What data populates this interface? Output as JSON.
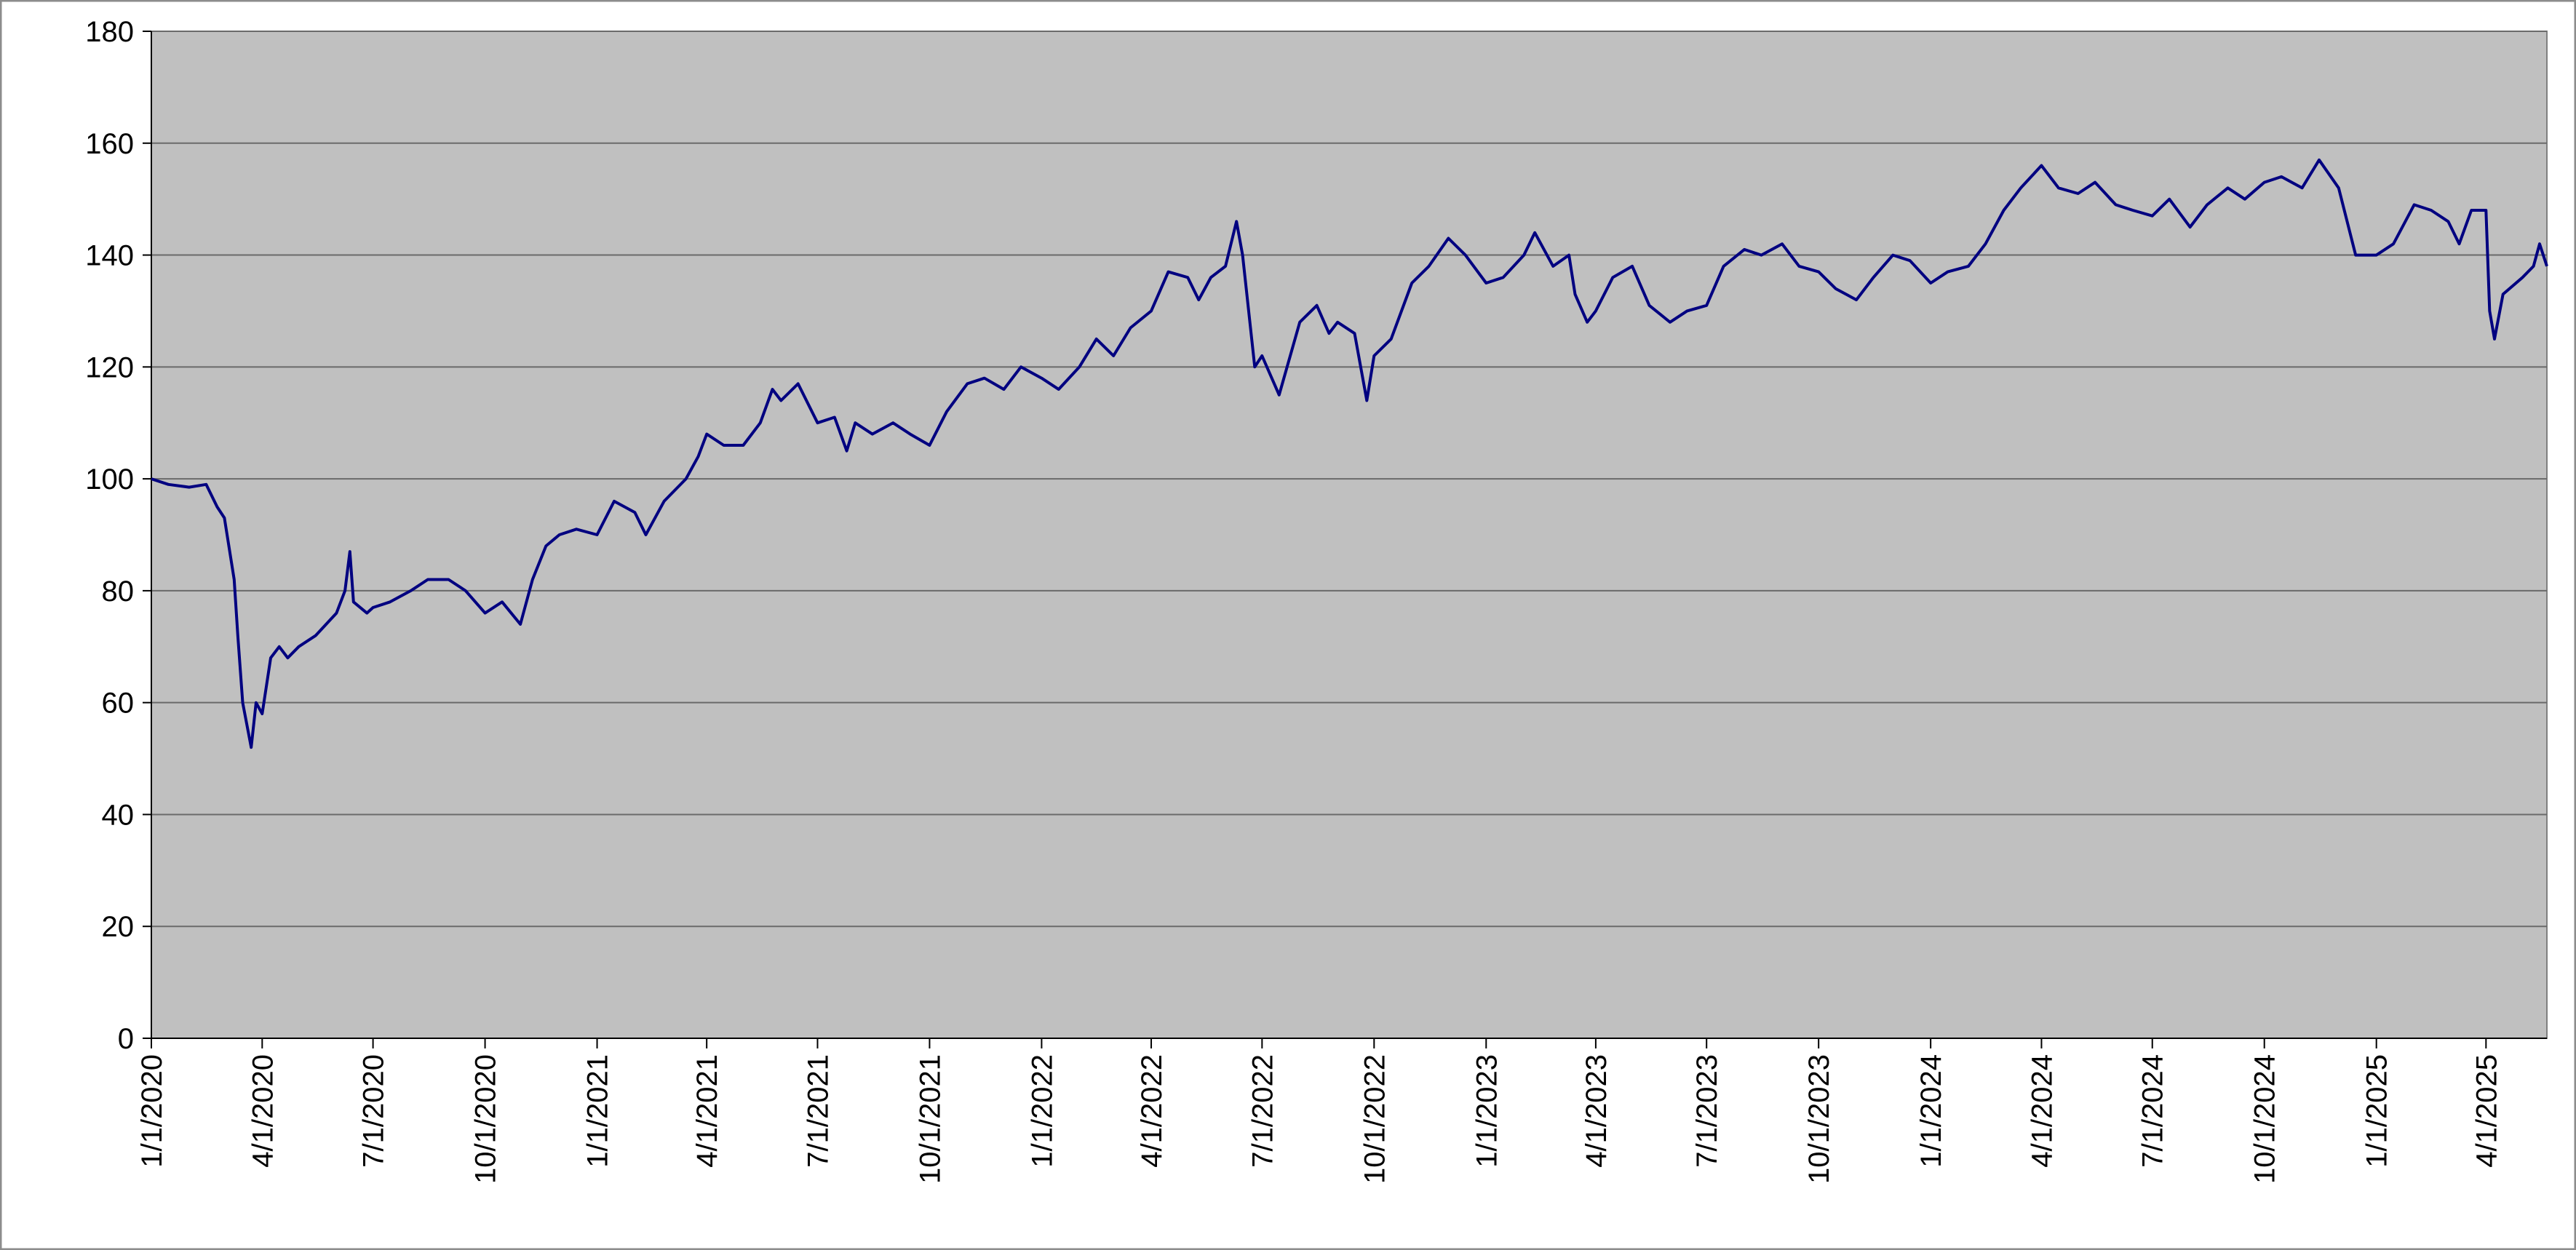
{
  "chart_data": {
    "type": "line",
    "x": [
      "1/1/2020",
      "1/15/2020",
      "2/1/2020",
      "2/15/2020",
      "2/24/2020",
      "3/1/2020",
      "3/9/2020",
      "3/12/2020",
      "3/16/2020",
      "3/23/2020",
      "3/27/2020",
      "4/1/2020",
      "4/8/2020",
      "4/15/2020",
      "4/22/2020",
      "5/1/2020",
      "5/15/2020",
      "6/1/2020",
      "6/8/2020",
      "6/12/2020",
      "6/15/2020",
      "6/26/2020",
      "7/1/2020",
      "7/15/2020",
      "8/1/2020",
      "8/15/2020",
      "9/1/2020",
      "9/15/2020",
      "10/1/2020",
      "10/15/2020",
      "10/30/2020",
      "11/9/2020",
      "11/20/2020",
      "12/1/2020",
      "12/15/2020",
      "1/1/2021",
      "1/15/2021",
      "2/1/2021",
      "2/10/2021",
      "2/25/2021",
      "3/15/2021",
      "3/25/2021",
      "4/1/2021",
      "4/15/2021",
      "5/1/2021",
      "5/15/2021",
      "5/25/2021",
      "6/1/2021",
      "6/15/2021",
      "7/1/2021",
      "7/15/2021",
      "7/25/2021",
      "8/1/2021",
      "8/15/2021",
      "9/1/2021",
      "9/15/2021",
      "10/1/2021",
      "10/15/2021",
      "11/1/2021",
      "11/15/2021",
      "12/1/2021",
      "12/15/2021",
      "1/1/2022",
      "1/15/2022",
      "2/1/2022",
      "2/15/2022",
      "3/1/2022",
      "3/15/2022",
      "4/1/2022",
      "4/15/2022",
      "5/1/2022",
      "5/10/2022",
      "5/20/2022",
      "6/1/2022",
      "6/10/2022",
      "6/15/2022",
      "6/25/2022",
      "7/1/2022",
      "7/15/2022",
      "8/1/2022",
      "8/15/2022",
      "8/25/2022",
      "9/1/2022",
      "9/15/2022",
      "9/25/2022",
      "10/1/2022",
      "10/15/2022",
      "11/1/2022",
      "11/15/2022",
      "12/1/2022",
      "12/15/2022",
      "1/1/2023",
      "1/15/2023",
      "2/1/2023",
      "2/10/2023",
      "2/25/2023",
      "3/10/2023",
      "3/15/2023",
      "3/25/2023",
      "4/1/2023",
      "4/15/2023",
      "5/1/2023",
      "5/15/2023",
      "6/1/2023",
      "6/15/2023",
      "7/1/2023",
      "7/15/2023",
      "8/1/2023",
      "8/15/2023",
      "9/1/2023",
      "9/15/2023",
      "10/1/2023",
      "10/15/2023",
      "11/1/2023",
      "11/15/2023",
      "12/1/2023",
      "12/15/2023",
      "1/1/2024",
      "1/15/2024",
      "2/1/2024",
      "2/15/2024",
      "3/1/2024",
      "3/15/2024",
      "4/1/2024",
      "4/15/2024",
      "5/1/2024",
      "5/15/2024",
      "6/1/2024",
      "6/15/2024",
      "7/1/2024",
      "7/15/2024",
      "8/1/2024",
      "8/15/2024",
      "9/1/2024",
      "9/15/2024",
      "10/1/2024",
      "10/15/2024",
      "11/1/2024",
      "11/15/2024",
      "12/1/2024",
      "12/15/2024",
      "1/1/2025",
      "1/15/2025",
      "2/1/2025",
      "2/15/2025",
      "3/1/2025",
      "3/10/2025",
      "3/20/2025",
      "4/1/2025",
      "4/4/2025",
      "4/8/2025",
      "4/15/2025",
      "5/1/2025",
      "5/10/2025",
      "5/15/2025",
      "5/21/2025"
    ],
    "values": [
      100,
      99,
      98.5,
      99,
      95,
      93,
      82,
      72,
      60,
      52,
      60,
      58,
      68,
      70,
      68,
      70,
      72,
      76,
      80,
      87,
      78,
      76,
      77,
      78,
      80,
      82,
      82,
      80,
      76,
      78,
      74,
      82,
      88,
      90,
      91,
      90,
      96,
      94,
      90,
      96,
      100,
      104,
      108,
      106,
      106,
      110,
      116,
      114,
      117,
      110,
      111,
      105,
      110,
      108,
      110,
      108,
      106,
      112,
      117,
      118,
      116,
      120,
      118,
      116,
      120,
      125,
      122,
      127,
      130,
      137,
      136,
      132,
      136,
      138,
      146,
      140,
      120,
      122,
      115,
      128,
      131,
      126,
      128,
      126,
      114,
      122,
      125,
      135,
      138,
      143,
      140,
      135,
      136,
      140,
      144,
      138,
      140,
      133,
      128,
      130,
      136,
      138,
      131,
      128,
      130,
      131,
      138,
      141,
      140,
      142,
      138,
      137,
      134,
      132,
      136,
      140,
      139,
      135,
      137,
      138,
      142,
      148,
      152,
      156,
      152,
      151,
      153,
      149,
      148,
      147,
      150,
      145,
      149,
      152,
      150,
      153,
      154,
      152,
      157,
      152,
      140,
      140,
      142,
      149,
      148,
      146,
      142,
      148,
      148,
      130,
      125,
      133,
      136,
      138,
      142,
      138
    ],
    "color": "#000080",
    "xlim": [
      "1/1/2020",
      "5/21/2025"
    ],
    "xticks": [
      "1/1/2020",
      "4/1/2020",
      "7/1/2020",
      "10/1/2020",
      "1/1/2021",
      "4/1/2021",
      "7/1/2021",
      "10/1/2021",
      "1/1/2022",
      "4/1/2022",
      "7/1/2022",
      "10/1/2022",
      "1/1/2023",
      "4/1/2023",
      "7/1/2023",
      "10/1/2023",
      "1/1/2024",
      "4/1/2024",
      "7/1/2024",
      "10/1/2024",
      "1/1/2025",
      "4/1/2025"
    ],
    "ylim": [
      0,
      180
    ],
    "yticks": [
      0,
      20,
      40,
      60,
      80,
      100,
      120,
      140,
      160,
      180
    ],
    "grid": true
  }
}
